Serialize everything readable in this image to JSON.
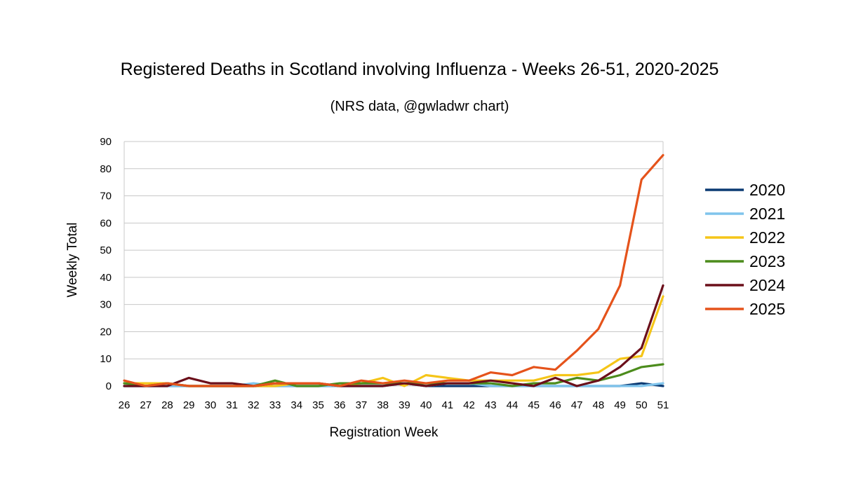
{
  "chart_data": {
    "type": "line",
    "title": "Registered Deaths in Scotland involving Influenza - Weeks 26-51, 2020-2025",
    "subtitle": "(NRS data, @gwladwr chart)",
    "xlabel": "Registration Week",
    "ylabel": "Weekly Total",
    "ylim": [
      0,
      90
    ],
    "yticks": [
      0,
      10,
      20,
      30,
      40,
      50,
      60,
      70,
      80,
      90
    ],
    "grid": true,
    "legend_position": "right",
    "categories": [
      "26",
      "27",
      "28",
      "29",
      "30",
      "31",
      "32",
      "33",
      "34",
      "35",
      "36",
      "37",
      "38",
      "39",
      "40",
      "41",
      "42",
      "43",
      "44",
      "45",
      "46",
      "47",
      "48",
      "49",
      "50",
      "51"
    ],
    "series": [
      {
        "name": "2020",
        "color": "#0b3a73",
        "values": [
          0,
          0,
          0,
          0,
          0,
          0,
          0,
          0,
          0,
          0,
          0,
          0,
          0,
          1,
          0,
          0,
          0,
          0,
          0,
          0,
          0,
          0,
          0,
          0,
          1,
          0
        ]
      },
      {
        "name": "2021",
        "color": "#7fc4ec",
        "values": [
          0,
          0,
          0,
          0,
          0,
          0,
          1,
          0,
          0,
          0,
          0,
          0,
          0,
          1,
          0,
          1,
          1,
          0,
          0,
          0,
          0,
          0,
          0,
          0,
          0,
          1
        ]
      },
      {
        "name": "2022",
        "color": "#f5c518",
        "values": [
          1,
          1,
          1,
          0,
          0,
          0,
          0,
          0,
          1,
          1,
          0,
          1,
          3,
          0,
          4,
          3,
          2,
          2,
          2,
          2,
          4,
          4,
          5,
          10,
          11,
          33
        ]
      },
      {
        "name": "2023",
        "color": "#4c8c1c",
        "values": [
          1,
          0,
          1,
          0,
          0,
          0,
          0,
          2,
          0,
          0,
          1,
          1,
          1,
          1,
          1,
          1,
          1,
          1,
          0,
          1,
          1,
          3,
          2,
          4,
          7,
          8
        ]
      },
      {
        "name": "2024",
        "color": "#6b0f1a",
        "values": [
          0,
          0,
          0,
          3,
          1,
          1,
          0,
          1,
          1,
          1,
          0,
          0,
          0,
          1,
          0,
          1,
          1,
          2,
          1,
          0,
          3,
          0,
          2,
          7,
          14,
          37
        ]
      },
      {
        "name": "2025",
        "color": "#e5531b",
        "values": [
          2,
          0,
          1,
          0,
          0,
          0,
          0,
          1,
          1,
          1,
          0,
          2,
          1,
          2,
          1,
          2,
          2,
          5,
          4,
          7,
          6,
          13,
          21,
          37,
          76,
          85
        ]
      }
    ]
  }
}
